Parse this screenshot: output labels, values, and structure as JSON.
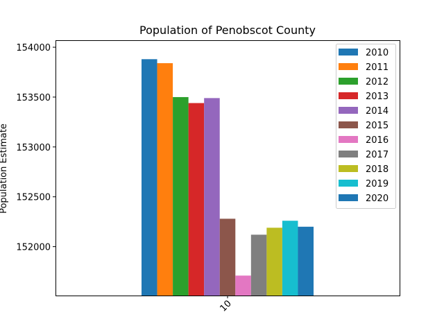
{
  "chart_data": {
    "type": "bar",
    "title": "Population of Penobscot County",
    "xlabel": "",
    "ylabel": "Population Estimate",
    "categories": [
      "10"
    ],
    "ylim": [
      151510,
      154070
    ],
    "yticks": [
      152000,
      152500,
      153000,
      153500,
      154000
    ],
    "grid": false,
    "legend": "top-right",
    "series": [
      {
        "name": "2010",
        "color": "#1f77b4",
        "values": [
          153880
        ]
      },
      {
        "name": "2011",
        "color": "#ff7f0e",
        "values": [
          153840
        ]
      },
      {
        "name": "2012",
        "color": "#2ca02c",
        "values": [
          153500
        ]
      },
      {
        "name": "2013",
        "color": "#d62728",
        "values": [
          153440
        ]
      },
      {
        "name": "2014",
        "color": "#9467bd",
        "values": [
          153490
        ]
      },
      {
        "name": "2015",
        "color": "#8c564b",
        "values": [
          152280
        ]
      },
      {
        "name": "2016",
        "color": "#e377c2",
        "values": [
          151710
        ]
      },
      {
        "name": "2017",
        "color": "#7f7f7f",
        "values": [
          152120
        ]
      },
      {
        "name": "2018",
        "color": "#bcbd22",
        "values": [
          152190
        ]
      },
      {
        "name": "2019",
        "color": "#17becf",
        "values": [
          152260
        ]
      },
      {
        "name": "2020",
        "color": "#1f77b4",
        "values": [
          152200
        ]
      }
    ]
  }
}
